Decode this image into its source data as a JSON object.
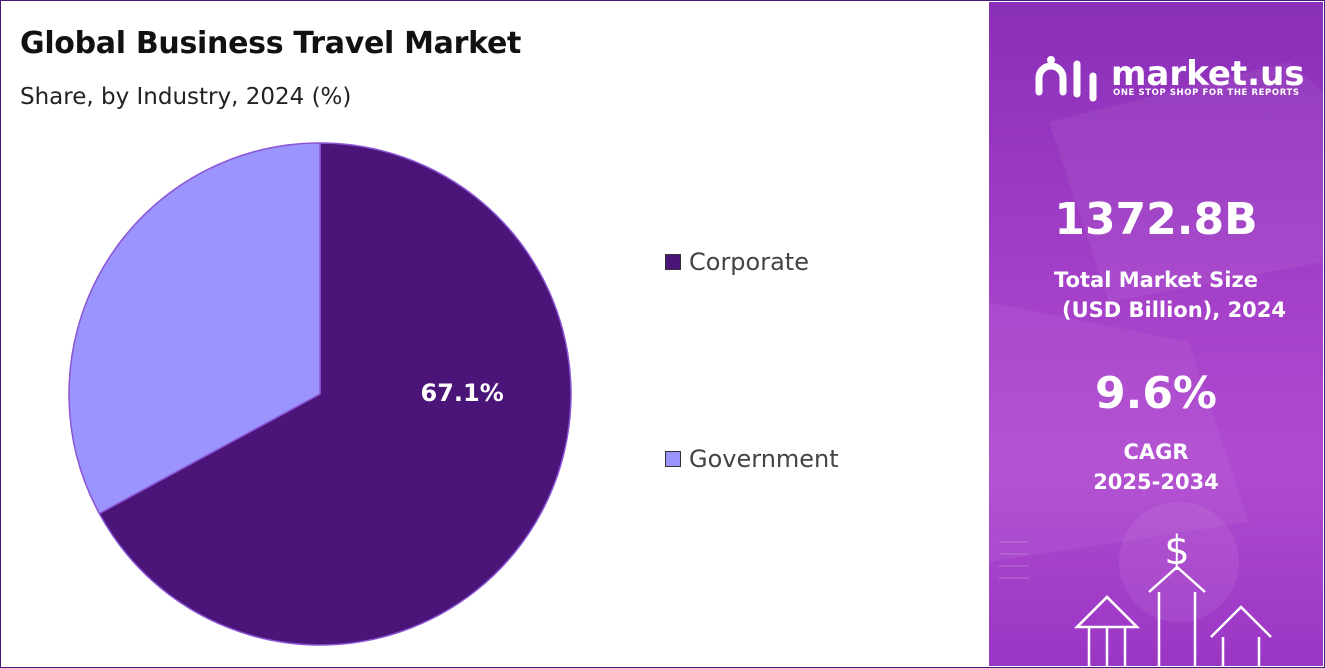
{
  "chart_data": {
    "type": "pie",
    "title": "Global Business Travel Market",
    "subtitle": "Share, by Industry, 2024 (%)",
    "categories": [
      "Corporate",
      "Government"
    ],
    "values": [
      67.1,
      32.9
    ],
    "data_labels": [
      "67.1%",
      ""
    ],
    "colors": [
      "#4b1479",
      "#9b94fc"
    ],
    "legend_placement": "right"
  },
  "panel": {
    "logo": {
      "name": "market.us",
      "tagline": "ONE STOP SHOP FOR THE REPORTS",
      "icon": "market-us-logo-icon"
    },
    "stat1": {
      "value": "1372.8B",
      "label_line1": "Total Market Size",
      "label_line2": "(USD Billion), 2024"
    },
    "stat2": {
      "value": "9.6%",
      "label_line1": "CAGR",
      "label_line2": "2025-2034"
    },
    "decoration": {
      "icons": [
        "dollar-icon",
        "up-arrow-icon"
      ]
    },
    "colors": {
      "gradient_top": "#8a2fb8",
      "gradient_mid": "#b04ad0"
    }
  }
}
